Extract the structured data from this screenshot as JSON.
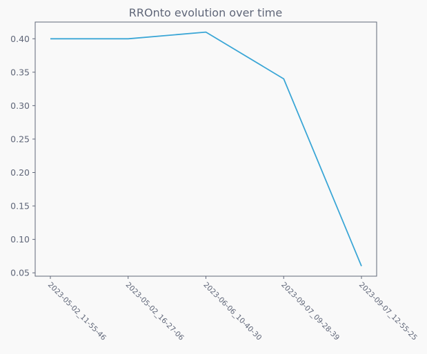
{
  "chart_data": {
    "type": "line",
    "title": "RROnto evolution over time",
    "xlabel": "",
    "ylabel": "",
    "categories": [
      "2023-05-02_11-55-46",
      "2023-05-02_16-27-06",
      "2023-06-06_10-40-30",
      "2023-09-07_09-28-39",
      "2023-09-07_12-55-25"
    ],
    "series": [
      {
        "values": [
          0.4,
          0.4,
          0.41,
          0.34,
          0.06
        ]
      }
    ],
    "ylim": [
      0.045,
      0.425
    ],
    "yticks": [
      "0.05",
      "0.10",
      "0.15",
      "0.20",
      "0.25",
      "0.30",
      "0.35",
      "0.40"
    ],
    "grid": false,
    "colors": {
      "line": "#3aa6d6",
      "axes_border": "#5f6678",
      "plot_bg": "#f9f9f9",
      "page_bg": "#f9f9f9",
      "text": "#5f6678"
    }
  }
}
